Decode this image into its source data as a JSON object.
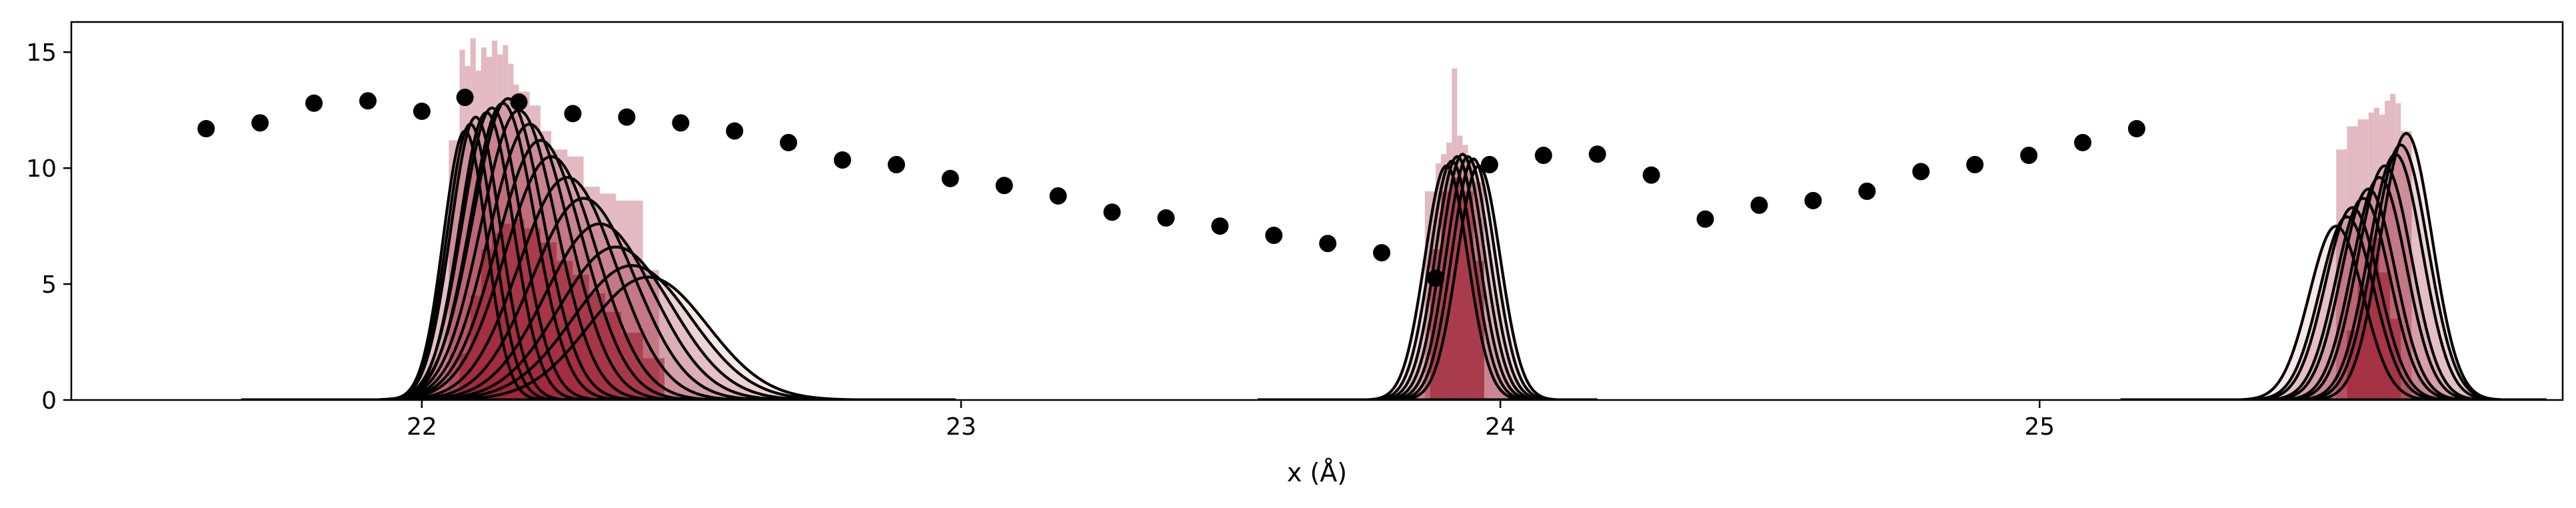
{
  "chart_data": {
    "type": "line",
    "title": "",
    "xlabel": "x (Å)",
    "ylabel": "",
    "xlim": [
      21.35,
      25.97
    ],
    "ylim": [
      0,
      16.3
    ],
    "x_ticks": [
      22,
      23,
      24,
      25
    ],
    "y_ticks": [
      0,
      5,
      10,
      15
    ],
    "grid": false,
    "legend": "none",
    "colors": {
      "curve": "#000000",
      "hist_dark": "#9b1b2e",
      "hist_light": "#d9a3ad",
      "point": "#000000"
    },
    "scatter_points": [
      {
        "x": 21.6,
        "y": 11.7
      },
      {
        "x": 21.7,
        "y": 11.95
      },
      {
        "x": 21.8,
        "y": 12.8
      },
      {
        "x": 21.9,
        "y": 12.9
      },
      {
        "x": 22.0,
        "y": 12.45
      },
      {
        "x": 22.08,
        "y": 13.05
      },
      {
        "x": 22.18,
        "y": 12.85
      },
      {
        "x": 22.28,
        "y": 12.35
      },
      {
        "x": 22.38,
        "y": 12.2
      },
      {
        "x": 22.48,
        "y": 11.95
      },
      {
        "x": 22.58,
        "y": 11.6
      },
      {
        "x": 22.68,
        "y": 11.1
      },
      {
        "x": 22.78,
        "y": 10.35
      },
      {
        "x": 22.88,
        "y": 10.15
      },
      {
        "x": 22.98,
        "y": 9.55
      },
      {
        "x": 23.08,
        "y": 9.25
      },
      {
        "x": 23.18,
        "y": 8.8
      },
      {
        "x": 23.28,
        "y": 8.1
      },
      {
        "x": 23.38,
        "y": 7.85
      },
      {
        "x": 23.48,
        "y": 7.5
      },
      {
        "x": 23.58,
        "y": 7.1
      },
      {
        "x": 23.68,
        "y": 6.75
      },
      {
        "x": 23.78,
        "y": 6.35
      },
      {
        "x": 23.88,
        "y": 5.25
      },
      {
        "x": 23.98,
        "y": 10.15
      },
      {
        "x": 24.08,
        "y": 10.55
      },
      {
        "x": 24.18,
        "y": 10.6
      },
      {
        "x": 24.28,
        "y": 9.7
      },
      {
        "x": 24.38,
        "y": 7.8
      },
      {
        "x": 24.48,
        "y": 8.4
      },
      {
        "x": 24.58,
        "y": 8.6
      },
      {
        "x": 24.68,
        "y": 9.0
      },
      {
        "x": 24.78,
        "y": 9.85
      },
      {
        "x": 24.88,
        "y": 10.15
      },
      {
        "x": 24.98,
        "y": 10.55
      },
      {
        "x": 25.08,
        "y": 11.1
      },
      {
        "x": 25.18,
        "y": 11.7
      }
    ],
    "peak_groups": [
      {
        "curves": [
          {
            "mu": 22.08,
            "sigma": 0.04,
            "amp": 11.6
          },
          {
            "mu": 22.09,
            "sigma": 0.043,
            "amp": 11.9
          },
          {
            "mu": 22.1,
            "sigma": 0.046,
            "amp": 12.2
          },
          {
            "mu": 22.12,
            "sigma": 0.05,
            "amp": 12.4
          },
          {
            "mu": 22.13,
            "sigma": 0.055,
            "amp": 12.6
          },
          {
            "mu": 22.15,
            "sigma": 0.06,
            "amp": 12.8
          },
          {
            "mu": 22.16,
            "sigma": 0.065,
            "amp": 13.0
          },
          {
            "mu": 22.18,
            "sigma": 0.07,
            "amp": 12.5
          },
          {
            "mu": 22.2,
            "sigma": 0.075,
            "amp": 11.9
          },
          {
            "mu": 22.22,
            "sigma": 0.08,
            "amp": 11.2
          },
          {
            "mu": 22.24,
            "sigma": 0.085,
            "amp": 10.5
          },
          {
            "mu": 22.27,
            "sigma": 0.09,
            "amp": 9.6
          },
          {
            "mu": 22.3,
            "sigma": 0.095,
            "amp": 8.7
          },
          {
            "mu": 22.33,
            "sigma": 0.1,
            "amp": 7.6
          },
          {
            "mu": 22.36,
            "sigma": 0.105,
            "amp": 6.6
          },
          {
            "mu": 22.39,
            "sigma": 0.11,
            "amp": 5.8
          },
          {
            "mu": 22.42,
            "sigma": 0.11,
            "amp": 5.3
          }
        ],
        "hist_light": [
          {
            "x0": 22.05,
            "x1": 22.07,
            "y": 11.2
          },
          {
            "x0": 22.07,
            "x1": 22.08,
            "y": 15.1
          },
          {
            "x0": 22.08,
            "x1": 22.09,
            "y": 14.4
          },
          {
            "x0": 22.09,
            "x1": 22.1,
            "y": 15.6
          },
          {
            "x0": 22.1,
            "x1": 22.11,
            "y": 14.2
          },
          {
            "x0": 22.11,
            "x1": 22.12,
            "y": 15.2
          },
          {
            "x0": 22.12,
            "x1": 22.13,
            "y": 14.8
          },
          {
            "x0": 22.13,
            "x1": 22.14,
            "y": 15.5
          },
          {
            "x0": 22.14,
            "x1": 22.15,
            "y": 14.9
          },
          {
            "x0": 22.15,
            "x1": 22.16,
            "y": 15.3
          },
          {
            "x0": 22.16,
            "x1": 22.17,
            "y": 14.5
          },
          {
            "x0": 22.17,
            "x1": 22.18,
            "y": 13.6
          },
          {
            "x0": 22.18,
            "x1": 22.2,
            "y": 13.3
          },
          {
            "x0": 22.2,
            "x1": 22.22,
            "y": 12.7
          },
          {
            "x0": 22.22,
            "x1": 22.24,
            "y": 11.6
          },
          {
            "x0": 22.24,
            "x1": 22.27,
            "y": 10.8
          },
          {
            "x0": 22.27,
            "x1": 22.3,
            "y": 10.5
          },
          {
            "x0": 22.3,
            "x1": 22.33,
            "y": 9.2
          },
          {
            "x0": 22.33,
            "x1": 22.36,
            "y": 8.9
          },
          {
            "x0": 22.36,
            "x1": 22.41,
            "y": 8.6
          },
          {
            "x0": 22.41,
            "x1": 22.44,
            "y": 5.6
          }
        ],
        "hist_dark": [
          {
            "x0": 22.07,
            "x1": 22.09,
            "y": 2.0
          },
          {
            "x0": 22.09,
            "x1": 22.11,
            "y": 4.5
          },
          {
            "x0": 22.11,
            "x1": 22.13,
            "y": 6.5
          },
          {
            "x0": 22.13,
            "x1": 22.15,
            "y": 7.2
          },
          {
            "x0": 22.15,
            "x1": 22.17,
            "y": 7.6
          },
          {
            "x0": 22.17,
            "x1": 22.19,
            "y": 7.8
          },
          {
            "x0": 22.19,
            "x1": 22.22,
            "y": 7.4
          },
          {
            "x0": 22.22,
            "x1": 22.25,
            "y": 6.8
          },
          {
            "x0": 22.25,
            "x1": 22.28,
            "y": 6.0
          },
          {
            "x0": 22.28,
            "x1": 22.31,
            "y": 5.4
          },
          {
            "x0": 22.31,
            "x1": 22.34,
            "y": 4.6
          },
          {
            "x0": 22.34,
            "x1": 22.37,
            "y": 3.8
          },
          {
            "x0": 22.37,
            "x1": 22.41,
            "y": 2.9
          },
          {
            "x0": 22.41,
            "x1": 22.45,
            "y": 1.8
          }
        ]
      },
      {
        "curves": [
          {
            "mu": 23.9,
            "sigma": 0.04,
            "amp": 10.1
          },
          {
            "mu": 23.91,
            "sigma": 0.04,
            "amp": 10.3
          },
          {
            "mu": 23.92,
            "sigma": 0.04,
            "amp": 10.5
          },
          {
            "mu": 23.93,
            "sigma": 0.04,
            "amp": 10.6
          },
          {
            "mu": 23.94,
            "sigma": 0.04,
            "amp": 10.5
          },
          {
            "mu": 23.95,
            "sigma": 0.04,
            "amp": 10.4
          },
          {
            "mu": 23.96,
            "sigma": 0.04,
            "amp": 10.1
          }
        ],
        "hist_light": [
          {
            "x0": 23.86,
            "x1": 23.88,
            "y": 9.0
          },
          {
            "x0": 23.88,
            "x1": 23.89,
            "y": 10.2
          },
          {
            "x0": 23.89,
            "x1": 23.9,
            "y": 10.6
          },
          {
            "x0": 23.9,
            "x1": 23.91,
            "y": 11.1
          },
          {
            "x0": 23.91,
            "x1": 23.92,
            "y": 14.3
          },
          {
            "x0": 23.92,
            "x1": 23.93,
            "y": 11.4
          },
          {
            "x0": 23.93,
            "x1": 23.94,
            "y": 11.0
          },
          {
            "x0": 23.94,
            "x1": 23.95,
            "y": 10.4
          },
          {
            "x0": 23.95,
            "x1": 23.97,
            "y": 9.4
          }
        ],
        "hist_dark": [
          {
            "x0": 23.87,
            "x1": 23.89,
            "y": 6.5
          },
          {
            "x0": 23.89,
            "x1": 23.91,
            "y": 9.0
          },
          {
            "x0": 23.91,
            "x1": 23.93,
            "y": 9.6
          },
          {
            "x0": 23.93,
            "x1": 23.95,
            "y": 9.0
          },
          {
            "x0": 23.95,
            "x1": 23.97,
            "y": 6.0
          }
        ]
      },
      {
        "curves": [
          {
            "mu": 25.55,
            "sigma": 0.05,
            "amp": 7.5
          },
          {
            "mu": 25.57,
            "sigma": 0.05,
            "amp": 7.9
          },
          {
            "mu": 25.58,
            "sigma": 0.05,
            "amp": 8.3
          },
          {
            "mu": 25.6,
            "sigma": 0.05,
            "amp": 8.7
          },
          {
            "mu": 25.61,
            "sigma": 0.05,
            "amp": 9.1
          },
          {
            "mu": 25.63,
            "sigma": 0.05,
            "amp": 9.6
          },
          {
            "mu": 25.64,
            "sigma": 0.05,
            "amp": 10.1
          },
          {
            "mu": 25.66,
            "sigma": 0.05,
            "amp": 10.6
          },
          {
            "mu": 25.67,
            "sigma": 0.05,
            "amp": 11.0
          },
          {
            "mu": 25.68,
            "sigma": 0.048,
            "amp": 11.5
          }
        ],
        "hist_light": [
          {
            "x0": 25.55,
            "x1": 25.57,
            "y": 10.8
          },
          {
            "x0": 25.57,
            "x1": 25.59,
            "y": 11.8
          },
          {
            "x0": 25.59,
            "x1": 25.61,
            "y": 12.1
          },
          {
            "x0": 25.61,
            "x1": 25.62,
            "y": 12.4
          },
          {
            "x0": 25.62,
            "x1": 25.63,
            "y": 12.6
          },
          {
            "x0": 25.63,
            "x1": 25.64,
            "y": 12.3
          },
          {
            "x0": 25.64,
            "x1": 25.65,
            "y": 12.9
          },
          {
            "x0": 25.65,
            "x1": 25.66,
            "y": 13.2
          },
          {
            "x0": 25.66,
            "x1": 25.67,
            "y": 12.8
          },
          {
            "x0": 25.67,
            "x1": 25.69,
            "y": 11.6
          }
        ],
        "hist_dark": [
          {
            "x0": 25.57,
            "x1": 25.59,
            "y": 3.0
          },
          {
            "x0": 25.59,
            "x1": 25.61,
            "y": 5.0
          },
          {
            "x0": 25.61,
            "x1": 25.63,
            "y": 7.0
          },
          {
            "x0": 25.63,
            "x1": 25.65,
            "y": 5.5
          },
          {
            "x0": 25.65,
            "x1": 25.67,
            "y": 3.5
          }
        ]
      }
    ]
  }
}
